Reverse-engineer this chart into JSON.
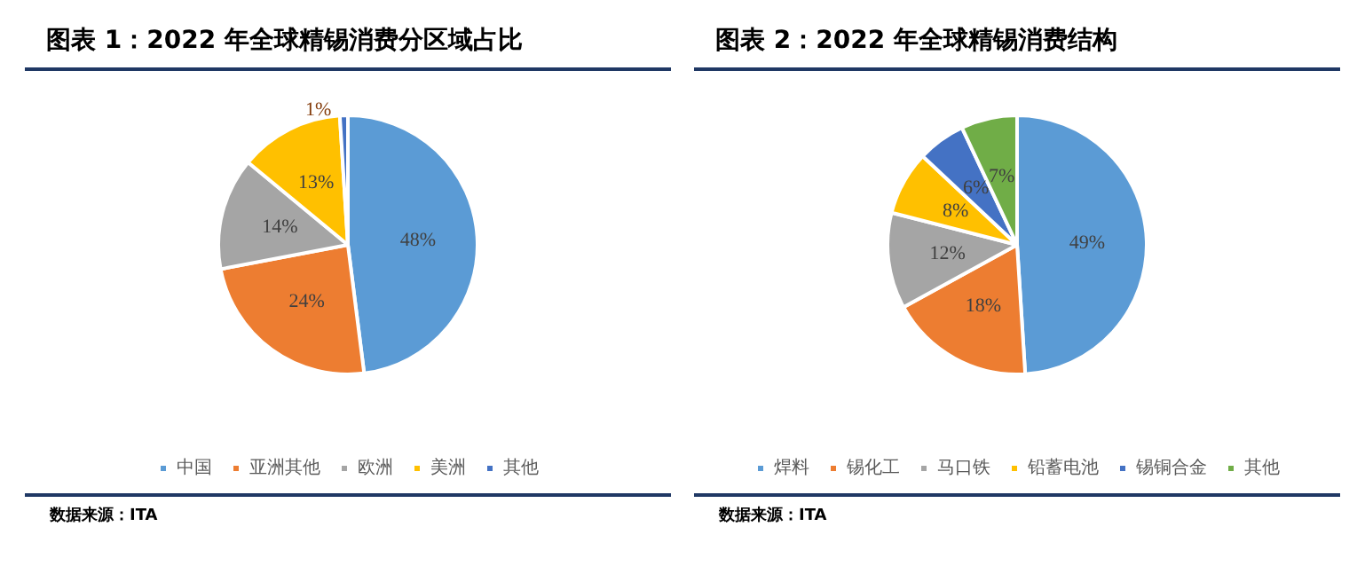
{
  "chart_data": [
    {
      "type": "pie",
      "title": "图表 1：2022 年全球精锡消费分区域占比",
      "categories": [
        "中国",
        "亚洲其他",
        "欧洲",
        "美洲",
        "其他"
      ],
      "values": [
        48,
        24,
        14,
        13,
        1
      ],
      "value_labels": [
        "48%",
        "24%",
        "14%",
        "13%",
        "1%"
      ],
      "colors": [
        "#5b9bd5",
        "#ed7d31",
        "#a5a5a5",
        "#ffc000",
        "#4472c4"
      ],
      "legend": "bottom",
      "annotations": [
        "数据来源：ITA"
      ]
    },
    {
      "type": "pie",
      "title": "图表 2：2022 年全球精锡消费结构",
      "categories": [
        "焊料",
        "锡化工",
        "马口铁",
        "铅蓄电池",
        "锡铜合金",
        "其他"
      ],
      "values": [
        49,
        18,
        12,
        8,
        6,
        7
      ],
      "value_labels": [
        "49%",
        "18%",
        "12%",
        "8%",
        "6%",
        "7%"
      ],
      "colors": [
        "#5b9bd5",
        "#ed7d31",
        "#a5a5a5",
        "#ffc000",
        "#4472c4",
        "#70ad47"
      ],
      "legend": "bottom",
      "annotations": [
        "数据来源：ITA"
      ]
    }
  ]
}
